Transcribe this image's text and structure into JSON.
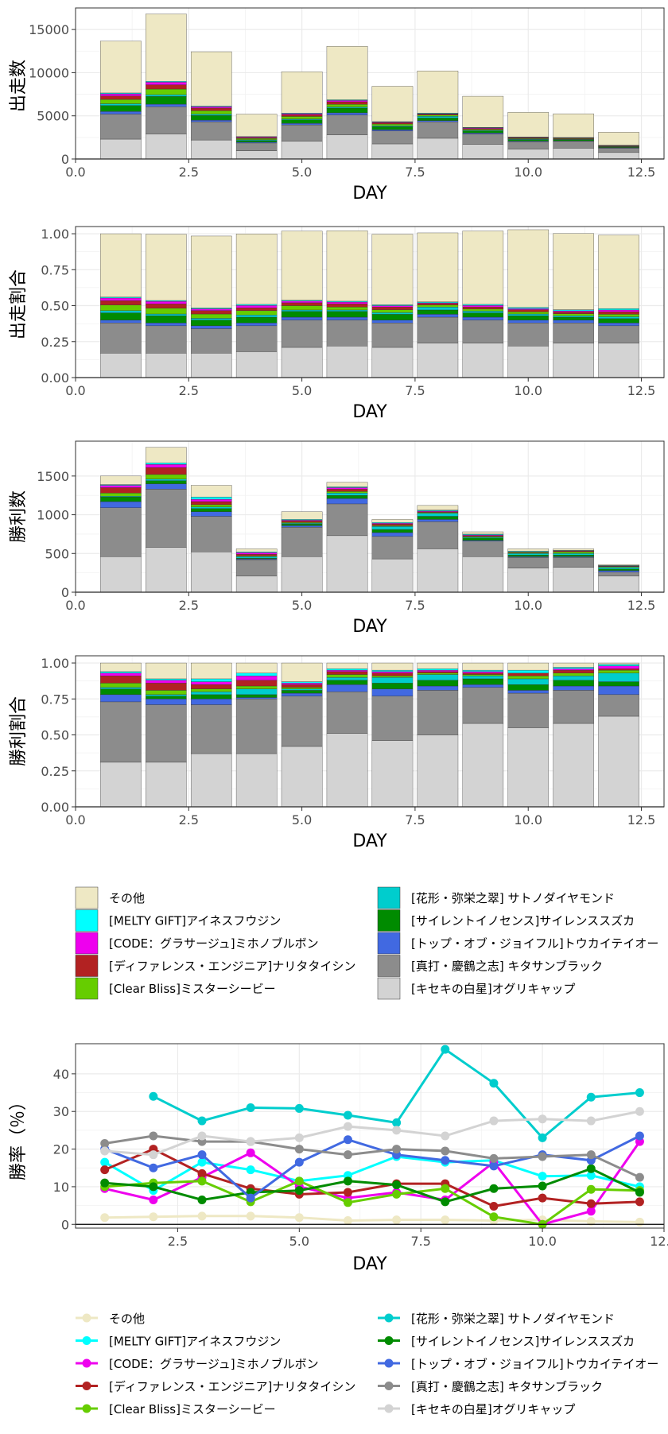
{
  "categories": [
    "その他",
    "[MELTY GIFT]アイネスフウジン",
    "[CODE：グラサージュ]ミホノブルボン",
    "[ディファレンス・エンジニア]ナリタタイシン",
    "[Clear Bliss]ミスターシービー",
    "[花形・弥栄之翠] サトノダイヤモンド",
    "[サイレントイノセンス]サイレンススズカ",
    "[トップ・オブ・ジョイフル]トウカイテイオー",
    "[真打・慶鶴之志] キタサンブラック",
    "[キセキの白星]オグリキャップ"
  ],
  "colors": [
    "#EEE8C4",
    "#00FFFF",
    "#EE00EE",
    "#B22222",
    "#66CD00",
    "#00CDCD",
    "#008B00",
    "#4169E1",
    "#8C8C8C",
    "#D3D3D3"
  ],
  "stack_order_bottom_to_top": [
    9,
    8,
    7,
    6,
    5,
    4,
    3,
    2,
    1,
    0
  ],
  "chart_data": [
    {
      "type": "bar",
      "stacked": true,
      "xlabel": "DAY",
      "ylabel": "出走数",
      "xlim": [
        0,
        13
      ],
      "ylim": [
        0,
        17500
      ],
      "xticks": [
        0.0,
        2.5,
        5.0,
        7.5,
        10.0,
        12.5
      ],
      "xtick_labels": [
        "0.0",
        "2.5",
        "5.0",
        "7.5",
        "10.0",
        "12.5"
      ],
      "yticks": [
        0,
        5000,
        10000,
        15000
      ],
      "ytick_labels": [
        "0",
        "5000",
        "10000",
        "15000"
      ],
      "x": [
        1,
        2,
        3,
        4,
        5,
        6,
        7,
        8,
        9,
        10,
        11,
        12
      ],
      "series": [
        {
          "name": "[キセキの白星]オグリキャップ",
          "values": [
            2300,
            2900,
            2200,
            950,
            2050,
            2800,
            1750,
            2400,
            1700,
            1150,
            1250,
            750
          ]
        },
        {
          "name": "[真打・慶鶴之志] キタサンブラック",
          "values": [
            2900,
            3150,
            2100,
            900,
            1900,
            2300,
            1500,
            1900,
            1200,
            850,
            800,
            500
          ]
        },
        {
          "name": "[トップ・オブ・ジョイフル]トウカイテイオー",
          "values": [
            300,
            300,
            200,
            100,
            180,
            250,
            150,
            150,
            120,
            80,
            60,
            50
          ]
        },
        {
          "name": "[サイレントイノセンス]サイレンススズカ",
          "values": [
            700,
            900,
            550,
            200,
            400,
            550,
            350,
            300,
            220,
            170,
            120,
            80
          ]
        },
        {
          "name": "[花形・弥栄之翠] サトノダイヤモンド",
          "values": [
            200,
            200,
            150,
            80,
            100,
            130,
            100,
            200,
            80,
            60,
            50,
            40
          ]
        },
        {
          "name": "[Clear Bliss]ミスターシービー",
          "values": [
            500,
            650,
            400,
            150,
            300,
            300,
            200,
            150,
            120,
            80,
            70,
            50
          ]
        },
        {
          "name": "[ディファレンス・エンジニア]ナリタタイシン",
          "values": [
            400,
            500,
            300,
            100,
            200,
            300,
            150,
            100,
            100,
            80,
            60,
            50
          ]
        },
        {
          "name": "[CODE：グラサージュ]ミホノブルボン",
          "values": [
            250,
            300,
            150,
            80,
            120,
            150,
            80,
            50,
            80,
            40,
            40,
            40
          ]
        },
        {
          "name": "[MELTY GIFT]アイネスフウジン",
          "values": [
            100,
            100,
            80,
            40,
            60,
            80,
            50,
            60,
            50,
            40,
            40,
            30
          ]
        },
        {
          "name": "その他",
          "values": [
            6000,
            7800,
            6300,
            2600,
            4800,
            6200,
            4100,
            4900,
            3600,
            2850,
            2750,
            1510
          ]
        }
      ]
    },
    {
      "type": "bar",
      "stacked": true,
      "xlabel": "DAY",
      "ylabel": "出走割合",
      "xlim": [
        0,
        13
      ],
      "ylim": [
        0,
        1.05
      ],
      "xticks": [
        0.0,
        2.5,
        5.0,
        7.5,
        10.0,
        12.5
      ],
      "xtick_labels": [
        "0.0",
        "2.5",
        "5.0",
        "7.5",
        "10.0",
        "12.5"
      ],
      "yticks": [
        0,
        0.25,
        0.5,
        0.75,
        1.0
      ],
      "ytick_labels": [
        "0.00",
        "0.25",
        "0.50",
        "0.75",
        "1.00"
      ],
      "x": [
        1,
        2,
        3,
        4,
        5,
        6,
        7,
        8,
        9,
        10,
        11,
        12
      ],
      "series": [
        {
          "name": "[キセキの白星]オグリキャップ",
          "values": [
            0.17,
            0.17,
            0.17,
            0.18,
            0.21,
            0.22,
            0.21,
            0.24,
            0.24,
            0.22,
            0.24,
            0.24
          ]
        },
        {
          "name": "[真打・慶鶴之志] キタサンブラック",
          "values": [
            0.21,
            0.19,
            0.17,
            0.18,
            0.19,
            0.18,
            0.17,
            0.18,
            0.16,
            0.16,
            0.14,
            0.12
          ]
        },
        {
          "name": "[トップ・オブ・ジョイフル]トウカイテイオー",
          "values": [
            0.02,
            0.02,
            0.02,
            0.02,
            0.02,
            0.02,
            0.02,
            0.02,
            0.02,
            0.02,
            0.02,
            0.02
          ]
        },
        {
          "name": "[サイレントイノセンス]サイレンススズカ",
          "values": [
            0.05,
            0.05,
            0.04,
            0.04,
            0.04,
            0.04,
            0.04,
            0.03,
            0.03,
            0.03,
            0.02,
            0.03
          ]
        },
        {
          "name": "[花形・弥栄之翠] サトノダイヤモンド",
          "values": [
            0.015,
            0.012,
            0.012,
            0.015,
            0.01,
            0.01,
            0.012,
            0.02,
            0.012,
            0.012,
            0.01,
            0.013
          ]
        },
        {
          "name": "[Clear Bliss]ミスターシービー",
          "values": [
            0.04,
            0.04,
            0.03,
            0.03,
            0.03,
            0.02,
            0.02,
            0.015,
            0.015,
            0.015,
            0.014,
            0.017
          ]
        },
        {
          "name": "[ディファレンス・エンジニア]ナリタタイシン",
          "values": [
            0.03,
            0.03,
            0.024,
            0.02,
            0.02,
            0.023,
            0.018,
            0.01,
            0.014,
            0.015,
            0.012,
            0.017
          ]
        },
        {
          "name": "[CODE：グラサージュ]ミホノブルボン",
          "values": [
            0.018,
            0.018,
            0.012,
            0.016,
            0.012,
            0.012,
            0.01,
            0.005,
            0.011,
            0.008,
            0.008,
            0.013
          ]
        },
        {
          "name": "[MELTY GIFT]アイネスフウジン",
          "values": [
            0.007,
            0.006,
            0.006,
            0.008,
            0.006,
            0.006,
            0.006,
            0.006,
            0.007,
            0.008,
            0.008,
            0.01
          ]
        },
        {
          "name": "その他",
          "values": [
            0.44,
            0.46,
            0.5,
            0.49,
            0.48,
            0.49,
            0.49,
            0.48,
            0.51,
            0.54,
            0.53,
            0.51
          ]
        }
      ]
    },
    {
      "type": "bar",
      "stacked": true,
      "xlabel": "DAY",
      "ylabel": "勝利数",
      "xlim": [
        0,
        13
      ],
      "ylim": [
        0,
        1950
      ],
      "xticks": [
        0.0,
        2.5,
        5.0,
        7.5,
        10.0,
        12.5
      ],
      "xtick_labels": [
        "0.0",
        "2.5",
        "5.0",
        "7.5",
        "10.0",
        "12.5"
      ],
      "yticks": [
        0,
        500,
        1000,
        1500
      ],
      "ytick_labels": [
        "0",
        "500",
        "1000",
        "1500"
      ],
      "x": [
        1,
        2,
        3,
        4,
        5,
        6,
        7,
        8,
        9,
        10,
        11,
        12
      ],
      "series": [
        {
          "name": "[キセキの白星]オグリキャップ",
          "values": [
            460,
            580,
            520,
            210,
            460,
            730,
            430,
            560,
            460,
            310,
            320,
            210
          ]
        },
        {
          "name": "[真打・慶鶴之志] キタサンブラック",
          "values": [
            630,
            750,
            460,
            210,
            380,
            410,
            290,
            350,
            200,
            140,
            130,
            50
          ]
        },
        {
          "name": "[トップ・オブ・ジョイフル]トウカイテイオー",
          "values": [
            80,
            70,
            60,
            10,
            20,
            70,
            50,
            30,
            10,
            10,
            10,
            20
          ]
        },
        {
          "name": "[サイレントイノセンス]サイレンススズカ",
          "values": [
            60,
            40,
            40,
            10,
            20,
            40,
            40,
            40,
            30,
            20,
            20,
            20
          ]
        },
        {
          "name": "[花形・弥栄之翠] サトノダイヤモンド",
          "values": [
            10,
            20,
            20,
            20,
            10,
            30,
            40,
            40,
            10,
            20,
            20,
            20
          ]
        },
        {
          "name": "[Clear Bliss]ミスターシービー",
          "values": [
            40,
            60,
            30,
            10,
            10,
            20,
            10,
            10,
            10,
            10,
            20,
            10
          ]
        },
        {
          "name": "[ディファレンス・エンジニア]ナリタタイシン",
          "values": [
            70,
            90,
            40,
            20,
            20,
            30,
            20,
            10,
            10,
            10,
            10,
            5
          ]
        },
        {
          "name": "[CODE：グラサージュ]ミホノブルボン",
          "values": [
            30,
            40,
            30,
            20,
            10,
            20,
            10,
            10,
            10,
            0,
            5,
            5
          ]
        },
        {
          "name": "[MELTY GIFT]アイネスフウジン",
          "values": [
            10,
            20,
            30,
            10,
            10,
            10,
            10,
            10,
            10,
            10,
            5,
            5
          ]
        },
        {
          "name": "その他",
          "values": [
            110,
            200,
            150,
            40,
            100,
            60,
            40,
            60,
            30,
            30,
            20,
            10
          ]
        }
      ]
    },
    {
      "type": "bar",
      "stacked": true,
      "xlabel": "DAY",
      "ylabel": "勝利割合",
      "xlim": [
        0,
        13
      ],
      "ylim": [
        0,
        1.05
      ],
      "xticks": [
        0.0,
        2.5,
        5.0,
        7.5,
        10.0,
        12.5
      ],
      "xtick_labels": [
        "0.0",
        "2.5",
        "5.0",
        "7.5",
        "10.0",
        "12.5"
      ],
      "yticks": [
        0,
        0.25,
        0.5,
        0.75,
        1.0
      ],
      "ytick_labels": [
        "0.00",
        "0.25",
        "0.50",
        "0.75",
        "1.00"
      ],
      "x": [
        1,
        2,
        3,
        4,
        5,
        6,
        7,
        8,
        9,
        10,
        11,
        12
      ],
      "series": [
        {
          "name": "[キセキの白星]オグリキャップ",
          "values": [
            0.31,
            0.31,
            0.37,
            0.37,
            0.42,
            0.51,
            0.46,
            0.5,
            0.58,
            0.55,
            0.58,
            0.63
          ]
        },
        {
          "name": "[真打・慶鶴之志] キタサンブラック",
          "values": [
            0.42,
            0.4,
            0.34,
            0.38,
            0.35,
            0.29,
            0.31,
            0.31,
            0.25,
            0.24,
            0.23,
            0.15
          ]
        },
        {
          "name": "[トップ・オブ・ジョイフル]トウカイテイオー",
          "values": [
            0.05,
            0.04,
            0.04,
            0.01,
            0.02,
            0.05,
            0.05,
            0.03,
            0.02,
            0.02,
            0.03,
            0.06
          ]
        },
        {
          "name": "[サイレントイノセンス]サイレンススズカ",
          "values": [
            0.04,
            0.02,
            0.03,
            0.02,
            0.02,
            0.03,
            0.04,
            0.04,
            0.04,
            0.04,
            0.04,
            0.03
          ]
        },
        {
          "name": "[花形・弥栄之翠] サトノダイヤモンド",
          "values": [
            0.01,
            0.01,
            0.02,
            0.04,
            0.01,
            0.02,
            0.04,
            0.04,
            0.02,
            0.04,
            0.03,
            0.06
          ]
        },
        {
          "name": "[Clear Bliss]ミスターシービー",
          "values": [
            0.03,
            0.03,
            0.02,
            0.02,
            0.01,
            0.02,
            0.01,
            0.01,
            0.01,
            0.02,
            0.02,
            0.02
          ]
        },
        {
          "name": "[ディファレンス・エンジニア]ナリタタイシン",
          "values": [
            0.05,
            0.05,
            0.03,
            0.04,
            0.02,
            0.02,
            0.02,
            0.01,
            0.01,
            0.02,
            0.02,
            0.01
          ]
        },
        {
          "name": "[CODE：グラサージュ]ミホノブルボン",
          "values": [
            0.02,
            0.02,
            0.02,
            0.03,
            0.01,
            0.01,
            0.01,
            0.01,
            0.01,
            0.0,
            0.01,
            0.02
          ]
        },
        {
          "name": "[MELTY GIFT]アイネスフウジン",
          "values": [
            0.01,
            0.01,
            0.02,
            0.02,
            0.01,
            0.01,
            0.01,
            0.01,
            0.01,
            0.02,
            0.01,
            0.01
          ]
        },
        {
          "name": "その他",
          "values": [
            0.06,
            0.11,
            0.11,
            0.07,
            0.13,
            0.04,
            0.05,
            0.04,
            0.05,
            0.05,
            0.03,
            0.01
          ]
        }
      ]
    },
    {
      "type": "line",
      "xlabel": "DAY",
      "ylabel": "勝率（％）",
      "xlim": [
        0.4,
        12.5
      ],
      "ylim": [
        -1,
        48
      ],
      "xticks": [
        2.5,
        5.0,
        7.5,
        10.0,
        12.5
      ],
      "xtick_labels": [
        "2.5",
        "5.0",
        "7.5",
        "10.0",
        "12.5"
      ],
      "yticks": [
        0,
        10,
        20,
        30,
        40
      ],
      "ytick_labels": [
        "0",
        "10",
        "20",
        "30",
        "40"
      ],
      "x": [
        1,
        2,
        3,
        4,
        5,
        6,
        7,
        8,
        9,
        10,
        11,
        12
      ],
      "series": [
        {
          "name": "その他",
          "values": [
            1.8,
            2.0,
            2.2,
            2.2,
            1.8,
            1.0,
            1.2,
            1.2,
            1.0,
            1.2,
            0.8,
            0.6
          ]
        },
        {
          "name": "[MELTY GIFT]アイネスフウジン",
          "values": [
            16.5,
            9.0,
            16.5,
            14.5,
            11.5,
            13.0,
            18.0,
            16.5,
            17.0,
            12.8,
            13.0,
            10.0
          ]
        },
        {
          "name": "[CODE：グラサージュ]ミホノブルボン",
          "values": [
            9.5,
            6.5,
            12.5,
            19.0,
            10.0,
            7.0,
            8.5,
            6.5,
            16.5,
            0.0,
            3.5,
            22.0
          ]
        },
        {
          "name": "[ディファレンス・エンジニア]ナリタタイシン",
          "values": [
            14.5,
            20.0,
            13.5,
            9.5,
            8.0,
            8.5,
            10.8,
            10.8,
            4.8,
            7.0,
            5.5,
            6.0
          ]
        },
        {
          "name": "[Clear Bliss]ミスターシービー",
          "values": [
            10.0,
            11.0,
            11.5,
            6.0,
            11.5,
            5.8,
            8.0,
            9.5,
            2.0,
            0.0,
            9.3,
            9.0
          ]
        },
        {
          "name": "[花形・弥栄之翠] サトノダイヤモンド",
          "values": [
            null,
            34.0,
            27.5,
            31.0,
            30.8,
            29.0,
            27.0,
            46.5,
            37.5,
            23.0,
            33.8,
            35.0
          ]
        },
        {
          "name": "[サイレントイノセンス]サイレンススズカ",
          "values": [
            11.0,
            10.0,
            6.5,
            8.5,
            9.0,
            11.5,
            10.5,
            6.0,
            9.5,
            10.2,
            14.8,
            8.5
          ]
        },
        {
          "name": "[トップ・オブ・ジョイフル]トウカイテイオー",
          "values": [
            20.0,
            15.0,
            18.5,
            7.0,
            16.5,
            22.5,
            18.5,
            17.0,
            15.5,
            18.5,
            17.0,
            23.5
          ]
        },
        {
          "name": "[真打・慶鶴之志] キタサンブラック",
          "values": [
            21.5,
            23.5,
            22.0,
            22.0,
            20.0,
            18.5,
            20.0,
            19.5,
            17.5,
            18.0,
            18.5,
            12.5
          ]
        },
        {
          "name": "[キセキの白星]オグリキャップ",
          "values": [
            19.5,
            18.5,
            23.5,
            22.0,
            23.0,
            26.0,
            25.0,
            23.5,
            27.5,
            28.0,
            27.5,
            30.0
          ]
        }
      ]
    }
  ]
}
